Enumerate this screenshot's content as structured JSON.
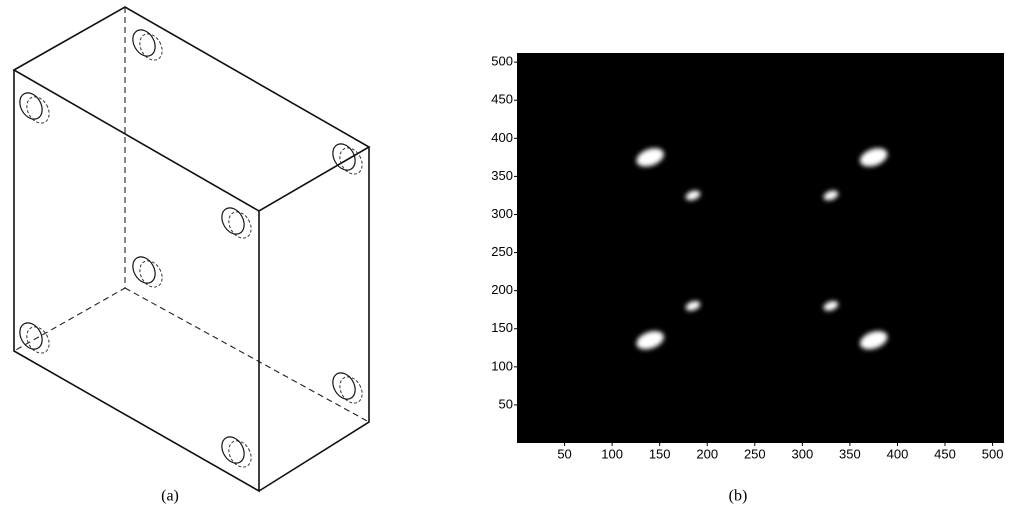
{
  "captions": {
    "a": "(a)",
    "b": "(b)"
  },
  "chart_data": {
    "type": "scatter",
    "x": [
      140,
      185,
      375,
      330,
      185,
      140,
      330,
      375
    ],
    "y": [
      375,
      325,
      375,
      325,
      180,
      135,
      180,
      135
    ],
    "sizes": [
      30,
      16,
      30,
      16,
      16,
      30,
      16,
      30
    ],
    "color": "#ffffff",
    "background": "#000000",
    "xlim": [
      0,
      512
    ],
    "ylim": [
      0,
      512
    ],
    "xticks": [
      50,
      100,
      150,
      200,
      250,
      300,
      350,
      400,
      450,
      500
    ],
    "yticks": [
      50,
      100,
      150,
      200,
      250,
      300,
      350,
      400,
      450,
      500
    ]
  }
}
